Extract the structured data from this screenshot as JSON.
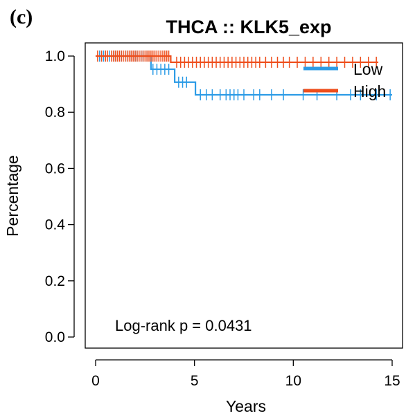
{
  "chart_data": {
    "type": "line",
    "panel_label": "(c)",
    "title": "THCA  ::  KLK5_exp",
    "xlabel": "Years",
    "ylabel": "Percentage",
    "xlim": [
      0,
      15
    ],
    "ylim": [
      0,
      1
    ],
    "x_ticks": [
      0,
      5,
      10,
      15
    ],
    "y_ticks": [
      0.0,
      0.2,
      0.4,
      0.6,
      0.8,
      1.0
    ],
    "y_tick_labels": [
      "0.0",
      "0.2",
      "0.4",
      "0.6",
      "0.8",
      "1.0"
    ],
    "legend_position": "top-right",
    "annotation": "Log-rank p = 0.0431",
    "series": [
      {
        "name": "Low",
        "color": "#2b9be6",
        "steps": [
          [
            0,
            1.0
          ],
          [
            2.8,
            0.953
          ],
          [
            4.0,
            0.907
          ],
          [
            5.05,
            0.862
          ],
          [
            15.0,
            0.862
          ]
        ],
        "censor_x": [
          0.2,
          0.4,
          0.5,
          0.7,
          0.9,
          1.0,
          1.2,
          1.3,
          1.5,
          1.6,
          1.8,
          2.0,
          2.1,
          2.3,
          2.4,
          2.6,
          2.9,
          3.1,
          3.3,
          3.5,
          3.7,
          4.2,
          4.4,
          4.6,
          5.3,
          5.6,
          5.9,
          6.3,
          6.6,
          6.8,
          7.0,
          7.2,
          7.5,
          8.0,
          8.3,
          8.9,
          9.5,
          10.5,
          11.2,
          12.2,
          12.9,
          13.4,
          14.2,
          14.9
        ]
      },
      {
        "name": "High",
        "color": "#ee4e1c",
        "steps": [
          [
            0,
            1.0
          ],
          [
            3.8,
            0.978
          ],
          [
            14.3,
            0.978
          ]
        ],
        "censor_x": [
          0.1,
          0.3,
          0.5,
          0.6,
          0.8,
          0.9,
          1.0,
          1.1,
          1.2,
          1.3,
          1.4,
          1.5,
          1.6,
          1.7,
          1.8,
          1.9,
          2.0,
          2.1,
          2.2,
          2.3,
          2.4,
          2.5,
          2.6,
          2.7,
          2.8,
          2.9,
          3.0,
          3.1,
          3.2,
          3.3,
          3.4,
          3.5,
          3.6,
          3.7,
          4.1,
          4.3,
          4.5,
          4.7,
          4.9,
          5.1,
          5.3,
          5.5,
          5.7,
          5.9,
          6.1,
          6.3,
          6.5,
          6.7,
          6.9,
          7.1,
          7.3,
          7.5,
          7.7,
          7.9,
          8.1,
          8.3,
          8.6,
          8.9,
          9.2,
          9.5,
          9.8,
          10.2,
          10.6,
          11.0,
          11.4,
          11.8,
          12.2,
          12.6,
          13.0,
          13.4,
          13.8,
          14.2
        ]
      }
    ]
  }
}
